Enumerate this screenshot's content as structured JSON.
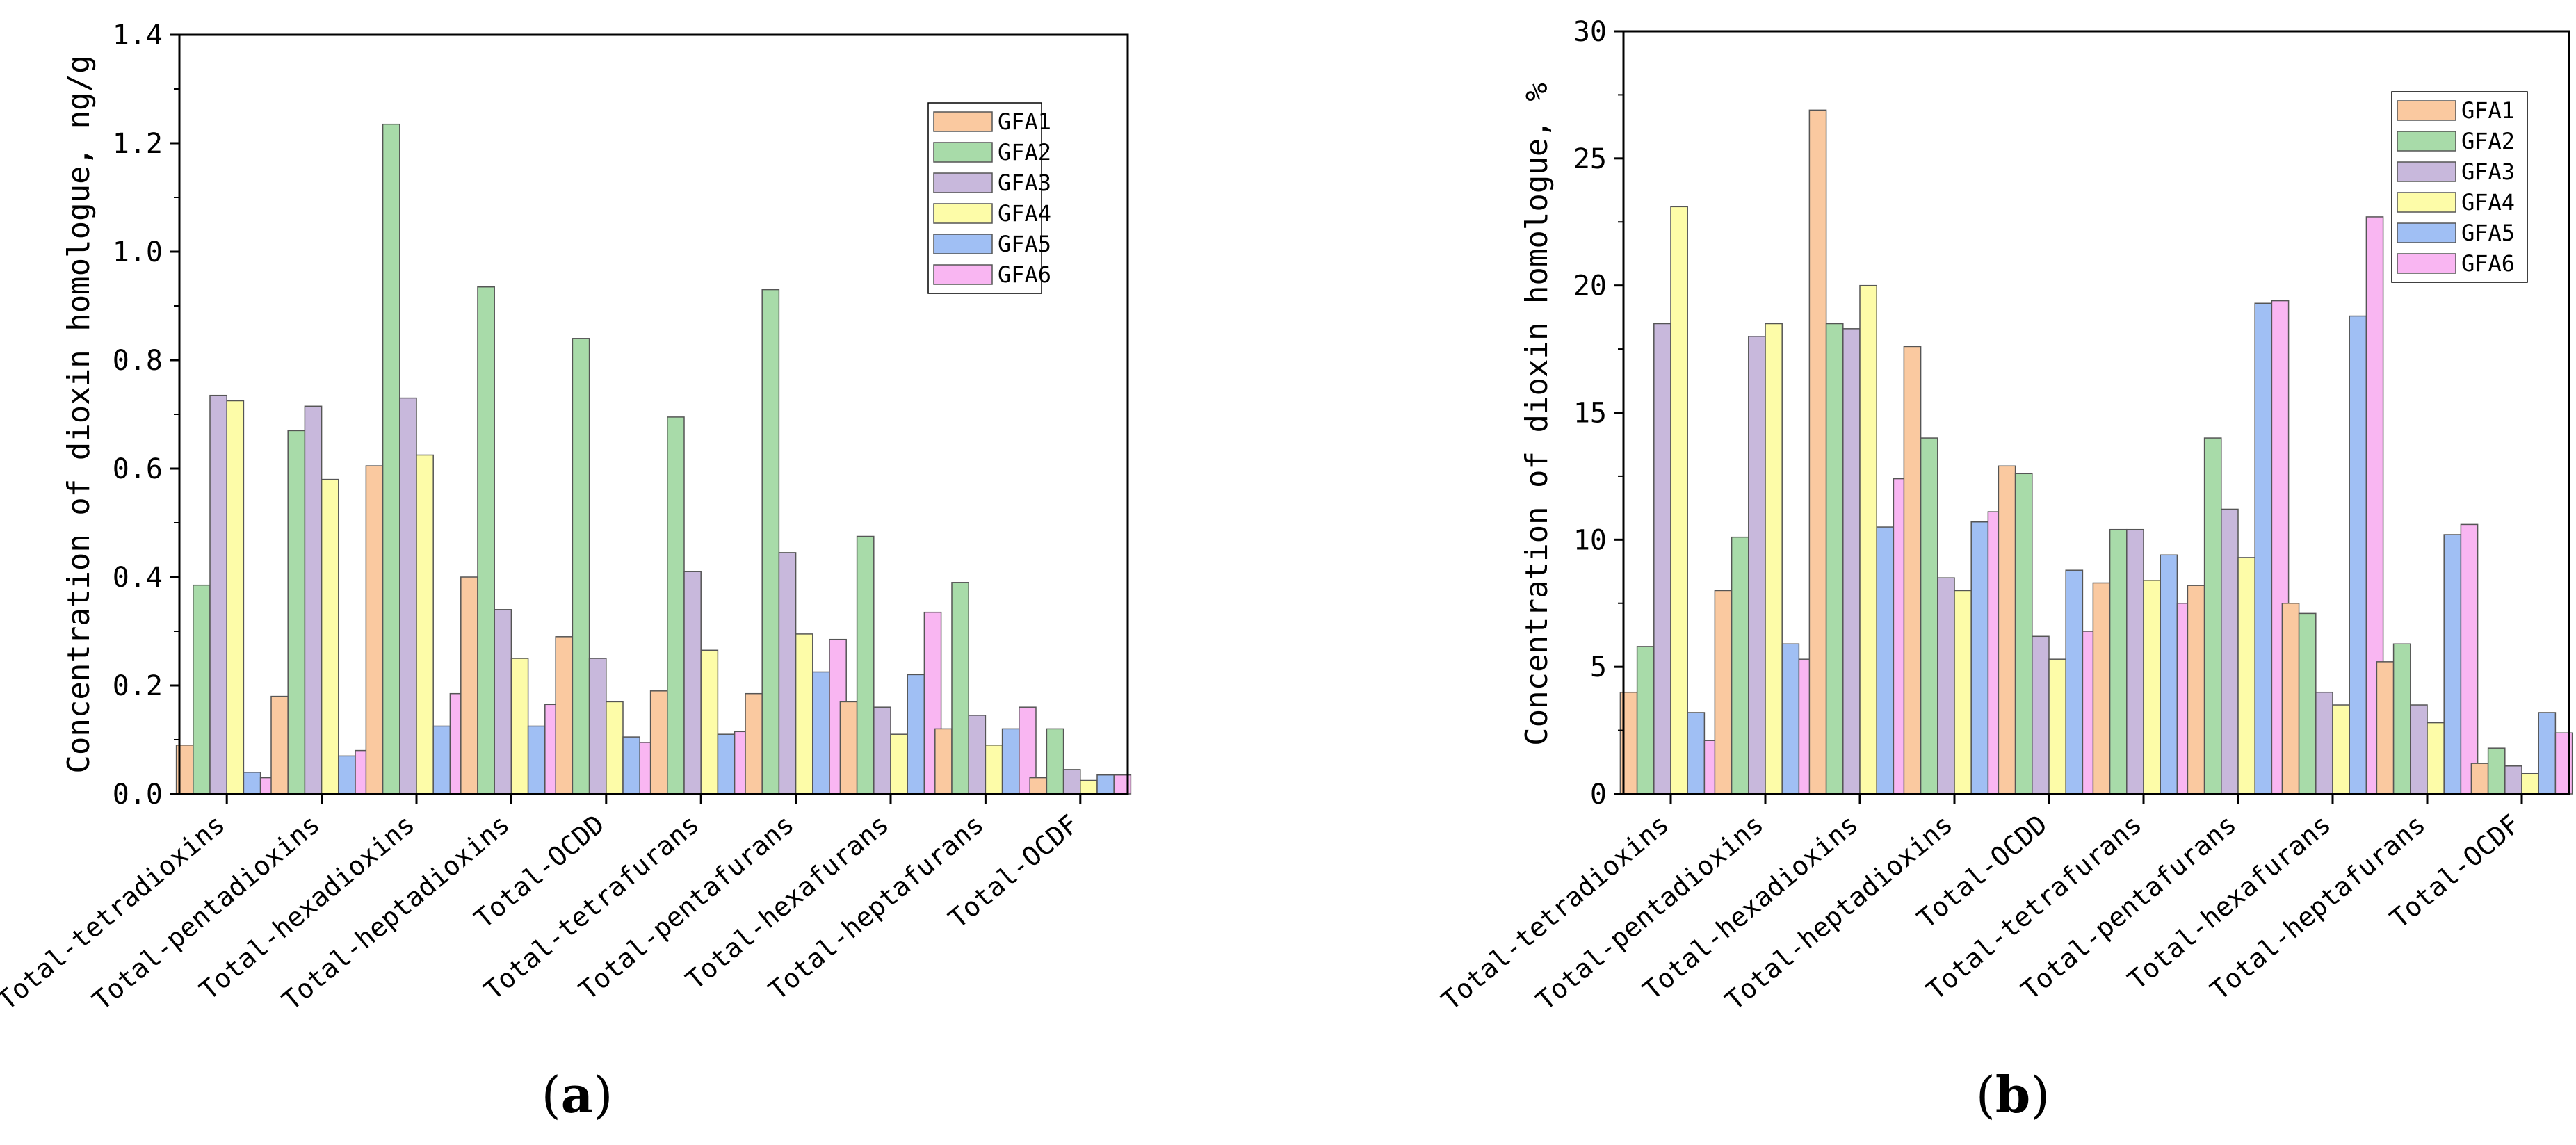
{
  "chart_data": [
    {
      "type": "bar",
      "panel_label": "a",
      "title": "",
      "xlabel": "",
      "ylabel": "Concentration of dioxin homologue, ng/g",
      "ylim": [
        0,
        1.4
      ],
      "yticks": [
        "0.0",
        "0.2",
        "0.4",
        "0.6",
        "0.8",
        "1.0",
        "1.2",
        "1.4"
      ],
      "legend_position": "top-right",
      "grid": false,
      "categories": [
        "Total-tetradioxins",
        "Total-pentadioxins",
        "Total-hexadioxins",
        "Total-heptadioxins",
        "Total-OCDD",
        "Total-tetrafurans",
        "Total-pentafurans",
        "Total-hexafurans",
        "Total-heptafurans",
        "Total-OCDF"
      ],
      "series": [
        {
          "name": "GFA1",
          "color": "#fac9a0",
          "values": [
            0.09,
            0.18,
            0.605,
            0.4,
            0.29,
            0.19,
            0.185,
            0.17,
            0.12,
            0.03
          ]
        },
        {
          "name": "GFA2",
          "color": "#a8dba9",
          "values": [
            0.385,
            0.67,
            1.235,
            0.935,
            0.84,
            0.695,
            0.93,
            0.475,
            0.39,
            0.12
          ]
        },
        {
          "name": "GFA3",
          "color": "#c8b8dc",
          "values": [
            0.735,
            0.715,
            0.73,
            0.34,
            0.25,
            0.41,
            0.445,
            0.16,
            0.145,
            0.045
          ]
        },
        {
          "name": "GFA4",
          "color": "#fdfca8",
          "values": [
            0.725,
            0.58,
            0.625,
            0.25,
            0.17,
            0.265,
            0.295,
            0.11,
            0.09,
            0.025
          ]
        },
        {
          "name": "GFA5",
          "color": "#a0bff4",
          "values": [
            0.04,
            0.07,
            0.125,
            0.125,
            0.105,
            0.11,
            0.225,
            0.22,
            0.12,
            0.035
          ]
        },
        {
          "name": "GFA6",
          "color": "#f9b6f2",
          "values": [
            0.03,
            0.08,
            0.185,
            0.165,
            0.095,
            0.115,
            0.285,
            0.335,
            0.16,
            0.035
          ]
        }
      ]
    },
    {
      "type": "bar",
      "panel_label": "b",
      "title": "",
      "xlabel": "",
      "ylabel": "Concentration of dioxin homologue, %",
      "ylim": [
        0,
        30
      ],
      "yticks": [
        "0",
        "5",
        "10",
        "15",
        "20",
        "25",
        "30"
      ],
      "legend_position": "top-right",
      "grid": false,
      "categories": [
        "Total-tetradioxins",
        "Total-pentadioxins",
        "Total-hexadioxins",
        "Total-heptadioxins",
        "Total-OCDD",
        "Total-tetrafurans",
        "Total-pentafurans",
        "Total-hexafurans",
        "Total-heptafurans",
        "Total-OCDF"
      ],
      "series": [
        {
          "name": "GFA1",
          "color": "#fac9a0",
          "values": [
            4.0,
            8.0,
            26.9,
            17.6,
            12.9,
            8.3,
            8.2,
            7.5,
            5.2,
            1.2
          ]
        },
        {
          "name": "GFA2",
          "color": "#a8dba9",
          "values": [
            5.8,
            10.1,
            18.5,
            14.0,
            12.6,
            10.4,
            14.0,
            7.1,
            5.9,
            1.8
          ]
        },
        {
          "name": "GFA3",
          "color": "#c8b8dc",
          "values": [
            18.5,
            18.0,
            18.3,
            8.5,
            6.2,
            10.4,
            11.2,
            4.0,
            3.5,
            1.1
          ]
        },
        {
          "name": "GFA4",
          "color": "#fdfca8",
          "values": [
            23.1,
            18.5,
            20.0,
            8.0,
            5.3,
            8.4,
            9.3,
            3.5,
            2.8,
            0.8
          ]
        },
        {
          "name": "GFA5",
          "color": "#a0bff4",
          "values": [
            3.2,
            5.9,
            10.5,
            10.7,
            8.8,
            9.4,
            19.3,
            18.8,
            10.2,
            3.2
          ]
        },
        {
          "name": "GFA6",
          "color": "#f9b6f2",
          "values": [
            2.1,
            5.3,
            12.4,
            11.1,
            6.4,
            7.5,
            19.4,
            22.7,
            10.6,
            2.4
          ]
        }
      ]
    }
  ]
}
